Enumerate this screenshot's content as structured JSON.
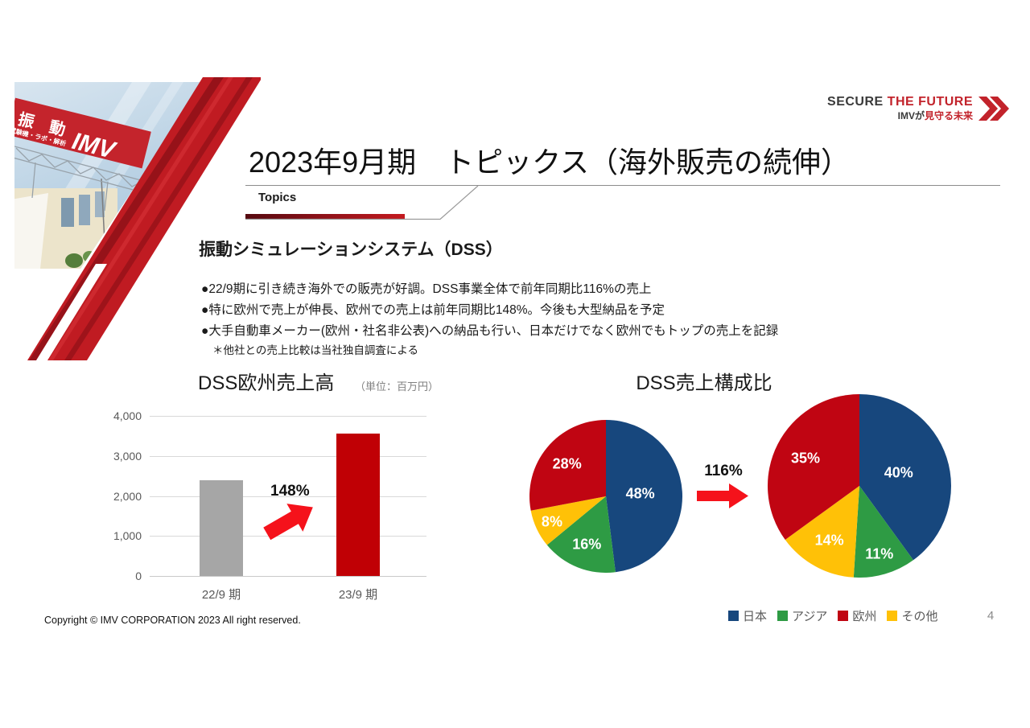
{
  "brand": {
    "secure": "SECURE",
    "the_future": "THE FUTURE",
    "tagline_black": "IMVが",
    "tagline_red": "見守る未来",
    "chevron_color": "#c2232b"
  },
  "collage": {
    "billboard_line1": "振　動",
    "billboard_line2": "試験機・ラボ・解析",
    "billboard_line3": "IMV"
  },
  "header": {
    "title": "2023年9月期　トピックス（海外販売の続伸）",
    "tab_label": "Topics"
  },
  "content": {
    "section_heading": "振動シミュレーションシステム（DSS）",
    "bullets": [
      "●22/9期に引き続き海外での販売が好調。DSS事業全体で前年同期比116%の売上",
      "●特に欧州で売上が伸長、欧州での売上は前年同期比148%。今後も大型納品を予定",
      "●大手自動車メーカー(欧州・社名非公表)への納品も行い、日本だけでなく欧州でもトップの売上を記録"
    ],
    "note": "＊他社との売上比較は当社独自調査による"
  },
  "chart_data": [
    {
      "type": "bar",
      "title": "DSS欧州売上高",
      "unit_label": "（単位：百万円）",
      "categories": [
        "22/9 期",
        "23/9 期"
      ],
      "values": [
        2400,
        3550
      ],
      "colors": [
        "#a6a6a6",
        "#c00005"
      ],
      "ylim": [
        0,
        4000
      ],
      "yticks": [
        0,
        1000,
        2000,
        3000,
        4000
      ],
      "ytick_labels": [
        "0",
        "1,000",
        "2,000",
        "3,000",
        "4,000"
      ],
      "grid": true,
      "growth_label": "148%",
      "arrow_color": "#f5121b"
    },
    {
      "type": "pie",
      "title": "DSS売上構成比",
      "growth_label": "116%",
      "arrow_color": "#f5121b",
      "legend": [
        {
          "label": "日本",
          "color": "#17477d"
        },
        {
          "label": "アジア",
          "color": "#2e9b44"
        },
        {
          "label": "欧州",
          "color": "#c00512"
        },
        {
          "label": "その他",
          "color": "#ffc107"
        }
      ],
      "pies": [
        {
          "slices": [
            {
              "label": "日本",
              "value": 48,
              "color": "#17477d"
            },
            {
              "label": "アジア",
              "value": 16,
              "color": "#2e9b44"
            },
            {
              "label": "その他",
              "value": 8,
              "color": "#ffc107"
            },
            {
              "label": "欧州",
              "value": 28,
              "color": "#c00512"
            }
          ]
        },
        {
          "slices": [
            {
              "label": "日本",
              "value": 40,
              "color": "#17477d"
            },
            {
              "label": "アジア",
              "value": 11,
              "color": "#2e9b44"
            },
            {
              "label": "その他",
              "value": 14,
              "color": "#ffc107"
            },
            {
              "label": "欧州",
              "value": 35,
              "color": "#c00512"
            }
          ]
        }
      ]
    }
  ],
  "footer": {
    "copyright": "Copyright © IMV CORPORATION 2023 All right reserved.",
    "page_number": "4"
  }
}
